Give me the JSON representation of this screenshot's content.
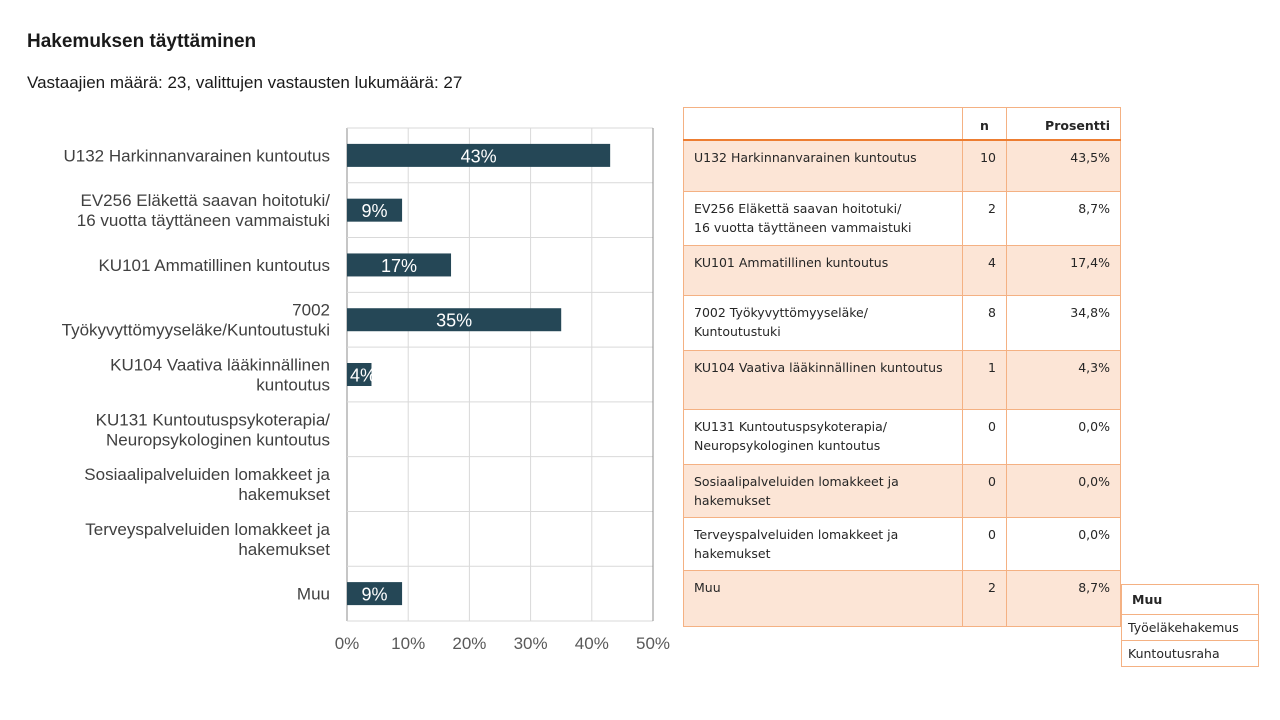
{
  "title": "Hakemuksen täyttäminen",
  "subtitle": "Vastaajien määrä: 23, valittujen vastausten lukumäärä: 27",
  "chart_data": {
    "type": "bar",
    "orientation": "horizontal",
    "categories": [
      [
        "U132 Harkinnanvarainen kuntoutus"
      ],
      [
        "EV256 Eläkettä saavan hoitotuki/",
        "16 vuotta täyttäneen vammaistuki"
      ],
      [
        "KU101 Ammatillinen kuntoutus"
      ],
      [
        "7002",
        "Työkyvyttömyyseläke/Kuntoutustuki"
      ],
      [
        "KU104 Vaativa lääkinnällinen",
        "kuntoutus"
      ],
      [
        "KU131 Kuntoutuspsykoterapia/",
        "Neuropsykologinen kuntoutus"
      ],
      [
        "Sosiaalipalveluiden lomakkeet ja",
        "hakemukset"
      ],
      [
        "Terveyspalveluiden lomakkeet ja",
        "hakemukset"
      ],
      [
        "Muu"
      ]
    ],
    "values": [
      43,
      9,
      17,
      35,
      4,
      0,
      0,
      0,
      9
    ],
    "value_labels": [
      "43%",
      "9%",
      "17%",
      "35%",
      "4%",
      "",
      "",
      "",
      "9%"
    ],
    "xlim": [
      0,
      50
    ],
    "xticks": [
      "0%",
      "10%",
      "20%",
      "30%",
      "40%",
      "50%"
    ],
    "grid": true,
    "bar_color": "#254756"
  },
  "table": {
    "headers": [
      "",
      "n",
      "Prosentti"
    ],
    "rows": [
      {
        "label": [
          "U132 Harkinnanvarainen kuntoutus"
        ],
        "n": "10",
        "pct": "43,5%"
      },
      {
        "label": [
          "EV256 Eläkettä saavan hoitotuki/",
          "16 vuotta täyttäneen vammaistuki"
        ],
        "n": "2",
        "pct": "8,7%"
      },
      {
        "label": [
          "KU101 Ammatillinen kuntoutus"
        ],
        "n": "4",
        "pct": "17,4%"
      },
      {
        "label": [
          "7002 Työkyvyttömyyseläke/",
          "Kuntoutustuki"
        ],
        "n": "8",
        "pct": "34,8%"
      },
      {
        "label": [
          "KU104 Vaativa lääkinnällinen kuntoutus"
        ],
        "n": "1",
        "pct": "4,3%"
      },
      {
        "label": [
          "KU131 Kuntoutuspsykoterapia/",
          "Neuropsykologinen kuntoutus"
        ],
        "n": "0",
        "pct": "0,0%"
      },
      {
        "label": [
          "Sosiaalipalveluiden lomakkeet ja",
          "hakemukset"
        ],
        "n": "0",
        "pct": "0,0%"
      },
      {
        "label": [
          "Terveyspalveluiden lomakkeet ja",
          "hakemukset"
        ],
        "n": "0",
        "pct": "0,0%"
      },
      {
        "label": [
          "Muu"
        ],
        "n": "2",
        "pct": "8,7%"
      }
    ],
    "accent_color": "#ed7d31",
    "shade_color": "#fce5d6"
  },
  "other_table": {
    "header": "Muu",
    "items": [
      "Työeläkehakemus",
      "Kuntoutusraha"
    ]
  }
}
